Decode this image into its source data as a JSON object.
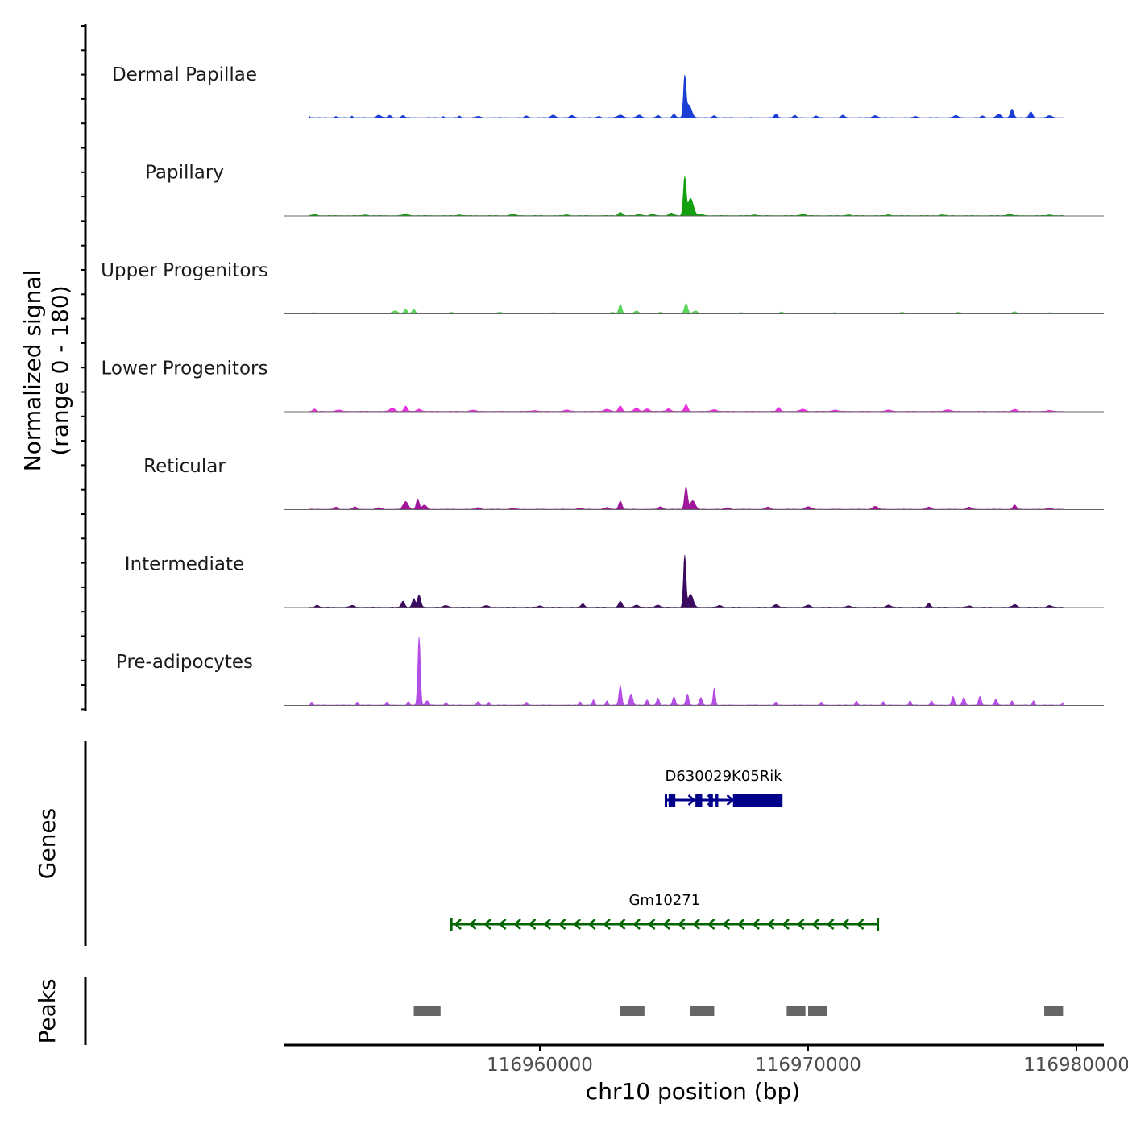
{
  "chart_data": {
    "type": "area",
    "title": "",
    "chromosome": "chr10",
    "xlabel": "chr10 position (bp)",
    "ylabel": "Normalized signal\n(range 0 - 180)",
    "ylim": [
      0,
      180
    ],
    "xlim": [
      116950000,
      116980000
    ],
    "x_ticks": [
      116960000,
      116970000,
      116980000
    ],
    "x_tick_labels": [
      "116960000",
      "116970000",
      "116980000"
    ],
    "series": [
      {
        "name": "Dermal Papillae",
        "color": "#1b3fd6",
        "signal_start": 116951400,
        "signal_end": 116979500,
        "peaks": [
          [
            116951400,
            4,
            25
          ],
          [
            116952400,
            3,
            30
          ],
          [
            116953000,
            4,
            30
          ],
          [
            116954000,
            6,
            80
          ],
          [
            116954400,
            5,
            60
          ],
          [
            116954900,
            5,
            60
          ],
          [
            116956400,
            3,
            30
          ],
          [
            116957000,
            4,
            40
          ],
          [
            116957700,
            3,
            80
          ],
          [
            116959500,
            4,
            60
          ],
          [
            116960500,
            6,
            80
          ],
          [
            116961200,
            5,
            80
          ],
          [
            116962200,
            3,
            60
          ],
          [
            116963000,
            6,
            100
          ],
          [
            116963700,
            6,
            80
          ],
          [
            116964400,
            5,
            60
          ],
          [
            116965000,
            8,
            60
          ],
          [
            116965400,
            90,
            45
          ],
          [
            116965550,
            30,
            100
          ],
          [
            116966500,
            5,
            60
          ],
          [
            116968800,
            8,
            60
          ],
          [
            116969500,
            5,
            60
          ],
          [
            116970300,
            4,
            60
          ],
          [
            116971300,
            6,
            60
          ],
          [
            116972500,
            5,
            80
          ],
          [
            116974000,
            3,
            60
          ],
          [
            116975500,
            5,
            80
          ],
          [
            116976500,
            4,
            60
          ],
          [
            116977100,
            8,
            80
          ],
          [
            116977600,
            20,
            60
          ],
          [
            116978300,
            14,
            60
          ],
          [
            116979000,
            5,
            80
          ]
        ]
      },
      {
        "name": "Papillary",
        "color": "#12a00e",
        "signal_start": 116951400,
        "signal_end": 116979500,
        "peaks": [
          [
            116951600,
            3,
            80
          ],
          [
            116953500,
            2,
            80
          ],
          [
            116955000,
            4,
            100
          ],
          [
            116957000,
            2,
            80
          ],
          [
            116959000,
            3,
            100
          ],
          [
            116961000,
            2,
            80
          ],
          [
            116963000,
            8,
            70
          ],
          [
            116963700,
            4,
            80
          ],
          [
            116964200,
            3,
            80
          ],
          [
            116964900,
            6,
            80
          ],
          [
            116965400,
            88,
            50
          ],
          [
            116965620,
            40,
            100
          ],
          [
            116966000,
            3,
            100
          ],
          [
            116968000,
            2,
            80
          ],
          [
            116969800,
            3,
            100
          ],
          [
            116971500,
            2,
            80
          ],
          [
            116973000,
            2,
            80
          ],
          [
            116975000,
            2,
            80
          ],
          [
            116977500,
            3,
            100
          ],
          [
            116979000,
            2,
            80
          ]
        ]
      },
      {
        "name": "Upper Progenitors",
        "color": "#5ad65a",
        "signal_start": 116951400,
        "signal_end": 116979500,
        "peaks": [
          [
            116951600,
            2,
            80
          ],
          [
            116954600,
            6,
            100
          ],
          [
            116955000,
            10,
            60
          ],
          [
            116955300,
            9,
            60
          ],
          [
            116956700,
            3,
            80
          ],
          [
            116958500,
            3,
            100
          ],
          [
            116960500,
            2,
            80
          ],
          [
            116962700,
            3,
            80
          ],
          [
            116963000,
            21,
            55
          ],
          [
            116963600,
            6,
            80
          ],
          [
            116964500,
            3,
            80
          ],
          [
            116965450,
            23,
            60
          ],
          [
            116965800,
            6,
            80
          ],
          [
            116967500,
            2,
            80
          ],
          [
            116969000,
            3,
            80
          ],
          [
            116971000,
            2,
            80
          ],
          [
            116973500,
            3,
            80
          ],
          [
            116975600,
            3,
            80
          ],
          [
            116977700,
            4,
            80
          ],
          [
            116979000,
            2,
            80
          ]
        ]
      },
      {
        "name": "Lower Progenitors",
        "color": "#e632dc",
        "signal_start": 116951400,
        "signal_end": 116979500,
        "peaks": [
          [
            116951600,
            5,
            60
          ],
          [
            116952500,
            3,
            100
          ],
          [
            116954500,
            8,
            90
          ],
          [
            116955000,
            12,
            60
          ],
          [
            116955500,
            5,
            80
          ],
          [
            116957500,
            3,
            100
          ],
          [
            116959800,
            2,
            100
          ],
          [
            116961000,
            3,
            100
          ],
          [
            116962500,
            5,
            100
          ],
          [
            116963000,
            13,
            60
          ],
          [
            116963600,
            8,
            80
          ],
          [
            116964000,
            6,
            80
          ],
          [
            116964800,
            6,
            80
          ],
          [
            116965450,
            16,
            60
          ],
          [
            116966500,
            4,
            100
          ],
          [
            116968900,
            9,
            60
          ],
          [
            116969800,
            5,
            100
          ],
          [
            116971000,
            3,
            100
          ],
          [
            116973000,
            3,
            100
          ],
          [
            116975200,
            4,
            100
          ],
          [
            116977700,
            5,
            80
          ],
          [
            116979000,
            2,
            100
          ]
        ]
      },
      {
        "name": "Reticular",
        "color": "#a0169a",
        "signal_start": 116951400,
        "signal_end": 116979500,
        "peaks": [
          [
            116952400,
            5,
            60
          ],
          [
            116953100,
            6,
            60
          ],
          [
            116954000,
            4,
            80
          ],
          [
            116955000,
            18,
            90
          ],
          [
            116955450,
            24,
            55
          ],
          [
            116955700,
            10,
            80
          ],
          [
            116957700,
            4,
            80
          ],
          [
            116959000,
            3,
            80
          ],
          [
            116961500,
            3,
            80
          ],
          [
            116962500,
            4,
            80
          ],
          [
            116963000,
            19,
            60
          ],
          [
            116964500,
            6,
            80
          ],
          [
            116965450,
            52,
            55
          ],
          [
            116965700,
            20,
            90
          ],
          [
            116967000,
            4,
            80
          ],
          [
            116968500,
            5,
            80
          ],
          [
            116970000,
            6,
            100
          ],
          [
            116972500,
            7,
            90
          ],
          [
            116974500,
            5,
            80
          ],
          [
            116976000,
            5,
            80
          ],
          [
            116977700,
            10,
            60
          ],
          [
            116979000,
            3,
            80
          ]
        ]
      },
      {
        "name": "Intermediate",
        "color": "#3a0b60",
        "signal_start": 116951400,
        "signal_end": 116979500,
        "peaks": [
          [
            116951700,
            5,
            60
          ],
          [
            116953000,
            4,
            80
          ],
          [
            116954900,
            14,
            60
          ],
          [
            116955300,
            20,
            55
          ],
          [
            116955500,
            28,
            60
          ],
          [
            116956500,
            4,
            80
          ],
          [
            116958000,
            4,
            80
          ],
          [
            116960000,
            3,
            80
          ],
          [
            116961600,
            8,
            60
          ],
          [
            116963000,
            14,
            60
          ],
          [
            116963600,
            5,
            80
          ],
          [
            116964400,
            5,
            80
          ],
          [
            116965400,
            120,
            45
          ],
          [
            116965620,
            30,
            90
          ],
          [
            116966700,
            4,
            80
          ],
          [
            116968800,
            6,
            80
          ],
          [
            116970000,
            5,
            80
          ],
          [
            116971500,
            3,
            80
          ],
          [
            116973000,
            5,
            80
          ],
          [
            116974500,
            9,
            60
          ],
          [
            116976000,
            3,
            80
          ],
          [
            116977700,
            6,
            80
          ],
          [
            116979000,
            4,
            80
          ]
        ]
      },
      {
        "name": "Pre-adipocytes",
        "color": "#b54ee6",
        "signal_start": 116951400,
        "signal_end": 116979500,
        "peaks": [
          [
            116951500,
            7,
            40
          ],
          [
            116953200,
            7,
            40
          ],
          [
            116954300,
            7,
            40
          ],
          [
            116955100,
            8,
            40
          ],
          [
            116955500,
            160,
            45
          ],
          [
            116955800,
            10,
            60
          ],
          [
            116956500,
            7,
            40
          ],
          [
            116957700,
            8,
            50
          ],
          [
            116958100,
            7,
            40
          ],
          [
            116959500,
            7,
            40
          ],
          [
            116961500,
            8,
            40
          ],
          [
            116962000,
            12,
            40
          ],
          [
            116962500,
            10,
            40
          ],
          [
            116963000,
            45,
            50
          ],
          [
            116963400,
            26,
            60
          ],
          [
            116964000,
            12,
            50
          ],
          [
            116964400,
            16,
            50
          ],
          [
            116965000,
            20,
            50
          ],
          [
            116965500,
            26,
            50
          ],
          [
            116966000,
            18,
            50
          ],
          [
            116966500,
            40,
            40
          ],
          [
            116968800,
            7,
            40
          ],
          [
            116970500,
            7,
            40
          ],
          [
            116971800,
            10,
            40
          ],
          [
            116972800,
            8,
            40
          ],
          [
            116973800,
            10,
            40
          ],
          [
            116974600,
            10,
            40
          ],
          [
            116975400,
            20,
            50
          ],
          [
            116975800,
            18,
            50
          ],
          [
            116976400,
            20,
            50
          ],
          [
            116977000,
            14,
            50
          ],
          [
            116977600,
            10,
            40
          ],
          [
            116978400,
            10,
            40
          ],
          [
            116979500,
            6,
            40
          ]
        ]
      }
    ],
    "genes": [
      {
        "name": "D630029K05Rik",
        "color": "#00008b",
        "strand": "+",
        "start": 116964700,
        "end": 116969000,
        "exons": [
          [
            116964800,
            116965050
          ],
          [
            116965800,
            116966050
          ],
          [
            116966300,
            116966450
          ],
          [
            116966550,
            116966650
          ],
          [
            116967200,
            116969000
          ]
        ]
      },
      {
        "name": "Gm10271",
        "color": "#006400",
        "strand": "-",
        "start": 116956700,
        "end": 116972600,
        "exons": []
      }
    ],
    "peaks_track": [
      [
        116955300,
        116956300
      ],
      [
        116963000,
        116963900
      ],
      [
        116965600,
        116966500
      ],
      [
        116969200,
        116969900
      ],
      [
        116970000,
        116970700
      ],
      [
        116978800,
        116979500
      ]
    ],
    "peak_color": "#666666",
    "track_labels": {
      "genes": "Genes",
      "peaks": "Peaks"
    }
  }
}
